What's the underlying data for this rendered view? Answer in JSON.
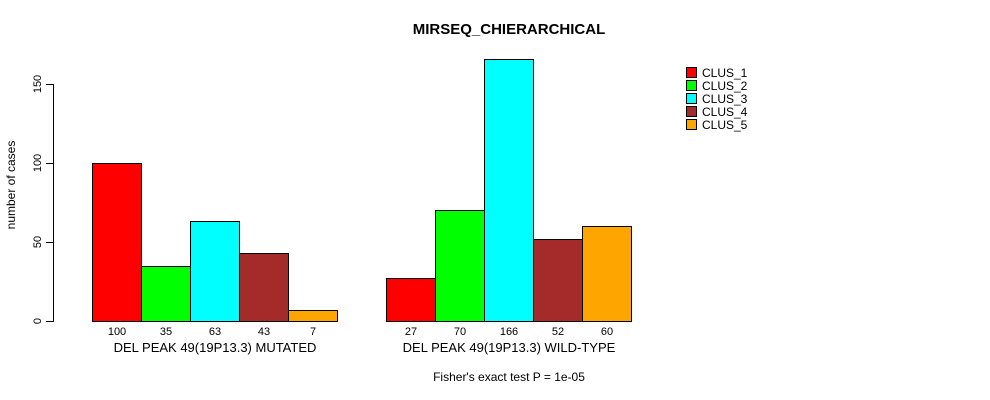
{
  "title": "MIRSEQ_CHIERARCHICAL",
  "footer": "Fisher's exact test P = 1e-05",
  "chart_data": {
    "type": "bar",
    "title": "MIRSEQ_CHIERARCHICAL",
    "xlabel": "",
    "ylabel": "number of cases",
    "yticks": [
      0,
      50,
      100,
      150
    ],
    "ylim": [
      0,
      166
    ],
    "grid": false,
    "legend_position": "right",
    "categories": [
      "DEL PEAK 49(19P13.3) MUTATED",
      "DEL PEAK 49(19P13.3) WILD-TYPE"
    ],
    "series": [
      {
        "name": "CLUS_1",
        "color": "#ff0000",
        "values": [
          100,
          27
        ]
      },
      {
        "name": "CLUS_2",
        "color": "#00ff00",
        "values": [
          35,
          70
        ]
      },
      {
        "name": "CLUS_3",
        "color": "#00ffff",
        "values": [
          63,
          166
        ]
      },
      {
        "name": "CLUS_4",
        "color": "#a52a2a",
        "values": [
          43,
          52
        ]
      },
      {
        "name": "CLUS_5",
        "color": "#ffa500",
        "values": [
          7,
          60
        ]
      }
    ],
    "bar_value_labels": [
      [
        100,
        35,
        63,
        43,
        7
      ],
      [
        27,
        70,
        166,
        52,
        60
      ]
    ],
    "annotation": "Fisher's exact test P = 1e-05"
  }
}
